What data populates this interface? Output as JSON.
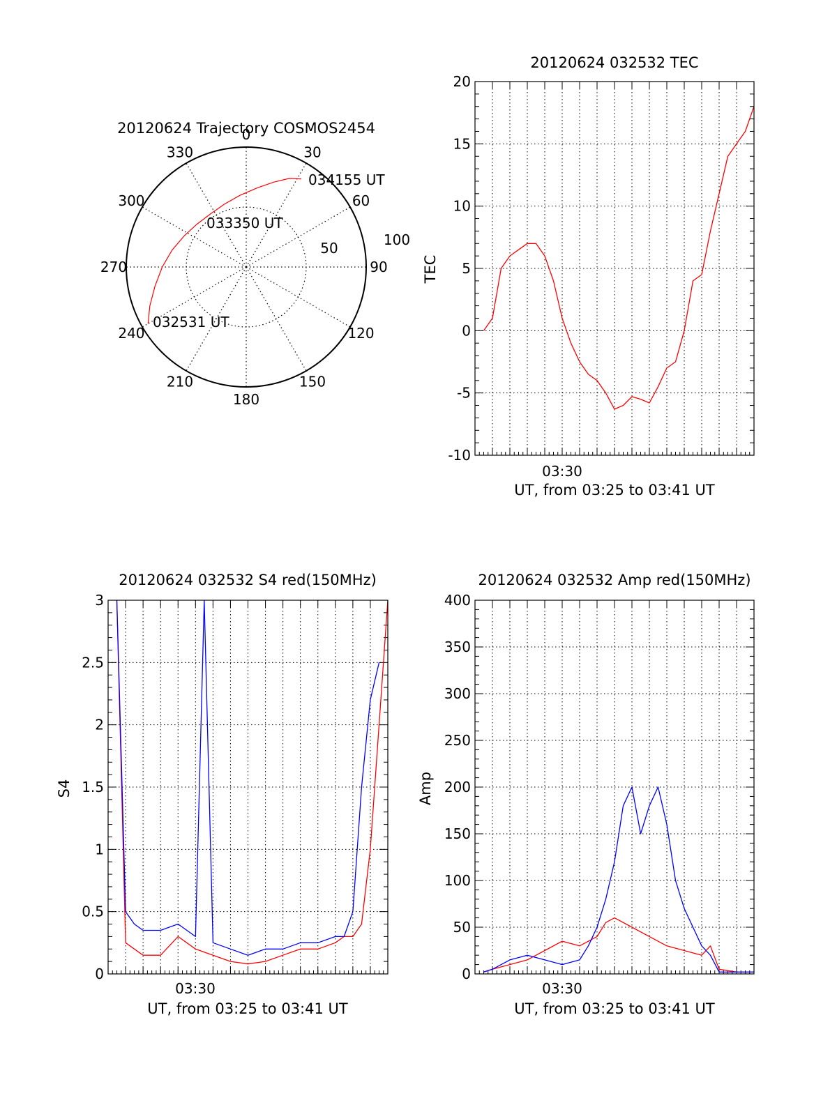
{
  "figure": {
    "date": "20120624"
  },
  "chart_data": [
    {
      "type": "polar",
      "id": "trajectory",
      "title": "20120624 Trajectory COSMOS2454",
      "angle_labels": [
        "0",
        "30",
        "60",
        "90",
        "120",
        "150",
        "180",
        "210",
        "240",
        "270",
        "300",
        "330"
      ],
      "radius_labels": [
        "50",
        "100"
      ],
      "rlim": [
        0,
        100
      ],
      "grid": true,
      "series": [
        {
          "color": "#ff0000",
          "points": [
            {
              "az": 240,
              "el": 5
            },
            {
              "az": 248,
              "el": 12
            },
            {
              "az": 258,
              "el": 20
            },
            {
              "az": 270,
              "el": 27
            },
            {
              "az": 283,
              "el": 33
            },
            {
              "az": 297,
              "el": 38
            },
            {
              "az": 311,
              "el": 41
            },
            {
              "az": 326,
              "el": 42
            },
            {
              "az": 341,
              "el": 40
            },
            {
              "az": 355,
              "el": 36
            },
            {
              "az": 8,
              "el": 30
            },
            {
              "az": 18,
              "el": 23
            },
            {
              "az": 26,
              "el": 16
            },
            {
              "az": 32,
              "el": 12
            }
          ]
        }
      ],
      "annotations": [
        "034155 UT",
        "033350 UT",
        "032531 UT"
      ]
    },
    {
      "type": "line",
      "id": "tec",
      "title": "20120624 032532 TEC",
      "ylabel": "TEC",
      "xlabel": "UT, from 03:25 to 03:41 UT",
      "x_tick_labels": [
        "03:30"
      ],
      "xlim": [
        0,
        16
      ],
      "ylim": [
        -10,
        20
      ],
      "yticks": [
        "-10",
        "-5",
        "0",
        "5",
        "10",
        "15",
        "20"
      ],
      "grid": true,
      "series": [
        {
          "color": "#ff0000",
          "x": [
            0.5,
            1.0,
            1.5,
            2.0,
            2.5,
            3.0,
            3.5,
            4.0,
            4.5,
            5.0,
            5.5,
            6.0,
            6.5,
            7.0,
            7.5,
            8.0,
            8.5,
            9.0,
            9.5,
            10.0,
            10.5,
            11.0,
            11.5,
            12.0,
            12.5,
            13.0,
            13.5,
            14.0,
            14.5,
            15.0,
            15.5,
            16.0
          ],
          "y": [
            0,
            1,
            5,
            6,
            6.5,
            7,
            7,
            6,
            4,
            1,
            -1,
            -2.5,
            -3.5,
            -4,
            -5,
            -6.3,
            -6,
            -5.3,
            -5.5,
            -5.8,
            -4.5,
            -3,
            -2.5,
            0,
            4,
            4.5,
            8,
            11,
            14,
            15,
            16,
            18
          ]
        }
      ]
    },
    {
      "type": "line",
      "id": "s4",
      "title": "20120624 032532 S4 red(150MHz)",
      "ylabel": "S4",
      "xlabel": "UT, from 03:25 to 03:41 UT",
      "x_tick_labels": [
        "03:30"
      ],
      "xlim": [
        0,
        16
      ],
      "ylim": [
        0,
        3
      ],
      "yticks": [
        "0",
        "0.5",
        "1",
        "1.5",
        "2",
        "2.5",
        "3"
      ],
      "grid": true,
      "series": [
        {
          "color": "#ff0000",
          "x": [
            0.5,
            1.0,
            1.5,
            2.0,
            3.0,
            4.0,
            5.0,
            6.0,
            7.0,
            8.0,
            9.0,
            10.0,
            11.0,
            12.0,
            13.0,
            13.5,
            14.0,
            14.5,
            15.0,
            15.5,
            16.0
          ],
          "y": [
            3,
            0.25,
            0.2,
            0.15,
            0.15,
            0.3,
            0.2,
            0.15,
            0.1,
            0.08,
            0.1,
            0.15,
            0.2,
            0.2,
            0.25,
            0.3,
            0.3,
            0.4,
            1,
            2,
            3
          ]
        },
        {
          "color": "#0000ff",
          "x": [
            0.5,
            1.0,
            1.5,
            2.0,
            3.0,
            4.0,
            5.0,
            5.5,
            6.0,
            7.0,
            8.0,
            9.0,
            10.0,
            11.0,
            12.0,
            13.0,
            13.5,
            14.0,
            14.5,
            15.0,
            15.5
          ],
          "y": [
            3,
            0.5,
            0.4,
            0.35,
            0.35,
            0.4,
            0.3,
            3,
            0.25,
            0.2,
            0.15,
            0.2,
            0.2,
            0.25,
            0.25,
            0.3,
            0.3,
            0.5,
            1.5,
            2.2,
            2.5
          ]
        }
      ]
    },
    {
      "type": "line",
      "id": "amp",
      "title": "20120624 032532 Amp red(150MHz)",
      "ylabel": "Amp",
      "xlabel": "UT, from 03:25 to 03:41 UT",
      "x_tick_labels": [
        "03:30"
      ],
      "xlim": [
        0,
        16
      ],
      "ylim": [
        0,
        400
      ],
      "yticks": [
        "0",
        "50",
        "100",
        "150",
        "200",
        "250",
        "300",
        "350",
        "400"
      ],
      "grid": true,
      "series": [
        {
          "color": "#ff0000",
          "x": [
            0.5,
            1.0,
            2.0,
            3.0,
            4.0,
            5.0,
            6.0,
            7.0,
            7.5,
            8.0,
            9.0,
            10.0,
            11.0,
            12.0,
            13.0,
            13.5,
            14.0,
            15.0,
            16.0
          ],
          "y": [
            2,
            5,
            10,
            15,
            25,
            35,
            30,
            40,
            55,
            60,
            50,
            40,
            30,
            25,
            20,
            30,
            5,
            2,
            2
          ]
        },
        {
          "color": "#0000ff",
          "x": [
            0.5,
            1.0,
            2.0,
            3.0,
            4.0,
            5.0,
            6.0,
            6.5,
            7.0,
            7.5,
            8.0,
            8.5,
            9.0,
            9.5,
            10.0,
            10.5,
            11.0,
            11.5,
            12.0,
            12.5,
            13.0,
            13.5,
            14.0,
            14.5,
            15.0,
            16.0
          ],
          "y": [
            2,
            5,
            15,
            20,
            15,
            10,
            15,
            30,
            50,
            80,
            120,
            180,
            200,
            150,
            180,
            200,
            160,
            100,
            70,
            50,
            30,
            20,
            2,
            2,
            2,
            2
          ]
        }
      ]
    }
  ]
}
